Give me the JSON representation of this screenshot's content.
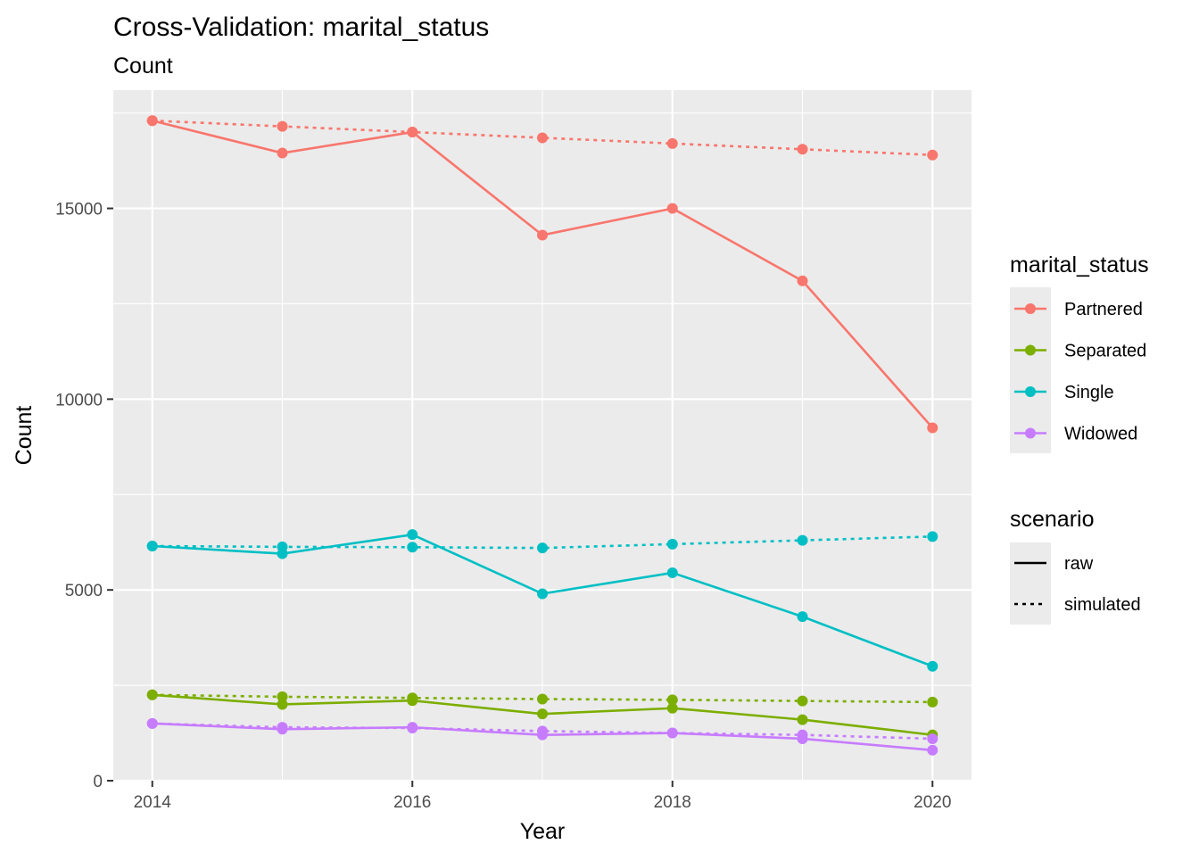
{
  "chart_data": {
    "type": "line",
    "title": "Cross-Validation: marital_status",
    "subtitle": "Count",
    "xlabel": "Year",
    "ylabel": "Count",
    "x": [
      2014,
      2015,
      2016,
      2017,
      2018,
      2019,
      2020
    ],
    "xlim": [
      2013.7,
      2020.3
    ],
    "ylim": [
      0,
      18100
    ],
    "x_ticks": [
      2014,
      2016,
      2018,
      2020
    ],
    "y_ticks": [
      0,
      5000,
      10000,
      15000
    ],
    "grid": true,
    "legend": {
      "placement": "right",
      "color_title": "marital_status",
      "linetype_title": "scenario",
      "color_entries": [
        {
          "label": "Partnered",
          "color": "#F8766D"
        },
        {
          "label": "Separated",
          "color": "#7CAE00"
        },
        {
          "label": "Single",
          "color": "#00BFC4"
        },
        {
          "label": "Widowed",
          "color": "#C77CFF"
        }
      ],
      "linetype_entries": [
        {
          "label": "raw",
          "dash": "solid"
        },
        {
          "label": "simulated",
          "dash": "dotted"
        }
      ]
    },
    "series": [
      {
        "marital_status": "Partnered",
        "scenario": "raw",
        "color": "#F8766D",
        "values": [
          17300,
          16450,
          17000,
          14300,
          15000,
          13100,
          9250
        ]
      },
      {
        "marital_status": "Partnered",
        "scenario": "simulated",
        "color": "#F8766D",
        "values": [
          17300,
          17150,
          17000,
          16850,
          16700,
          16550,
          16400
        ]
      },
      {
        "marital_status": "Separated",
        "scenario": "raw",
        "color": "#7CAE00",
        "values": [
          2250,
          2000,
          2100,
          1750,
          1900,
          1600,
          1200
        ]
      },
      {
        "marital_status": "Separated",
        "scenario": "simulated",
        "color": "#7CAE00",
        "values": [
          2250,
          2200,
          2170,
          2140,
          2120,
          2090,
          2060
        ]
      },
      {
        "marital_status": "Single",
        "scenario": "raw",
        "color": "#00BFC4",
        "values": [
          6150,
          5950,
          6450,
          4900,
          5450,
          4300,
          3000
        ]
      },
      {
        "marital_status": "Single",
        "scenario": "simulated",
        "color": "#00BFC4",
        "values": [
          6150,
          6130,
          6120,
          6100,
          6200,
          6300,
          6400
        ]
      },
      {
        "marital_status": "Widowed",
        "scenario": "raw",
        "color": "#C77CFF",
        "values": [
          1500,
          1350,
          1400,
          1200,
          1250,
          1100,
          800
        ]
      },
      {
        "marital_status": "Widowed",
        "scenario": "simulated",
        "color": "#C77CFF",
        "values": [
          1500,
          1400,
          1380,
          1300,
          1250,
          1200,
          1100
        ]
      }
    ]
  }
}
